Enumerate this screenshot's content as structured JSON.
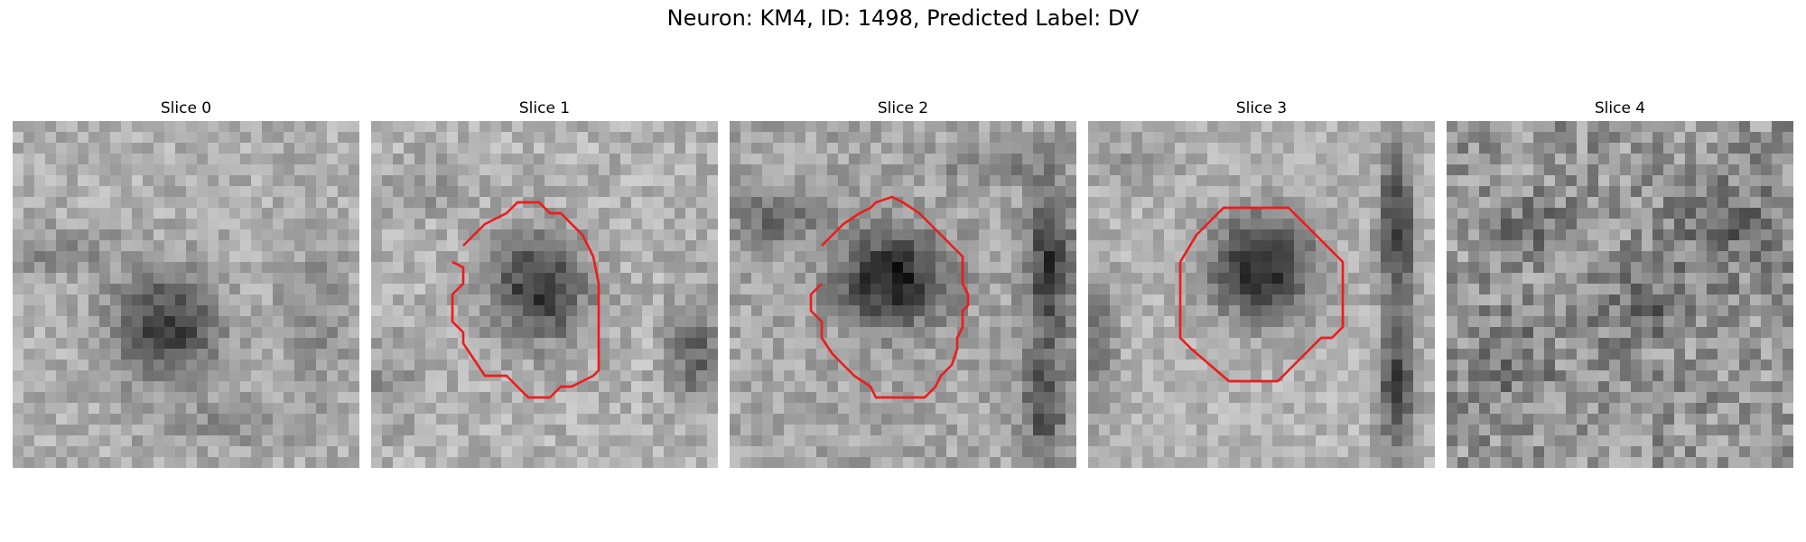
{
  "figure": {
    "title": "Neuron: KM4, ID: 1498, Predicted Label: DV"
  },
  "panels": [
    {
      "title": "Slice 0",
      "has_contour": false
    },
    {
      "title": "Slice 1",
      "has_contour": true
    },
    {
      "title": "Slice 2",
      "has_contour": true
    },
    {
      "title": "Slice 3",
      "has_contour": true
    },
    {
      "title": "Slice 4",
      "has_contour": false
    }
  ],
  "colors": {
    "contour": "#ee1c1c",
    "background": "#ffffff"
  }
}
